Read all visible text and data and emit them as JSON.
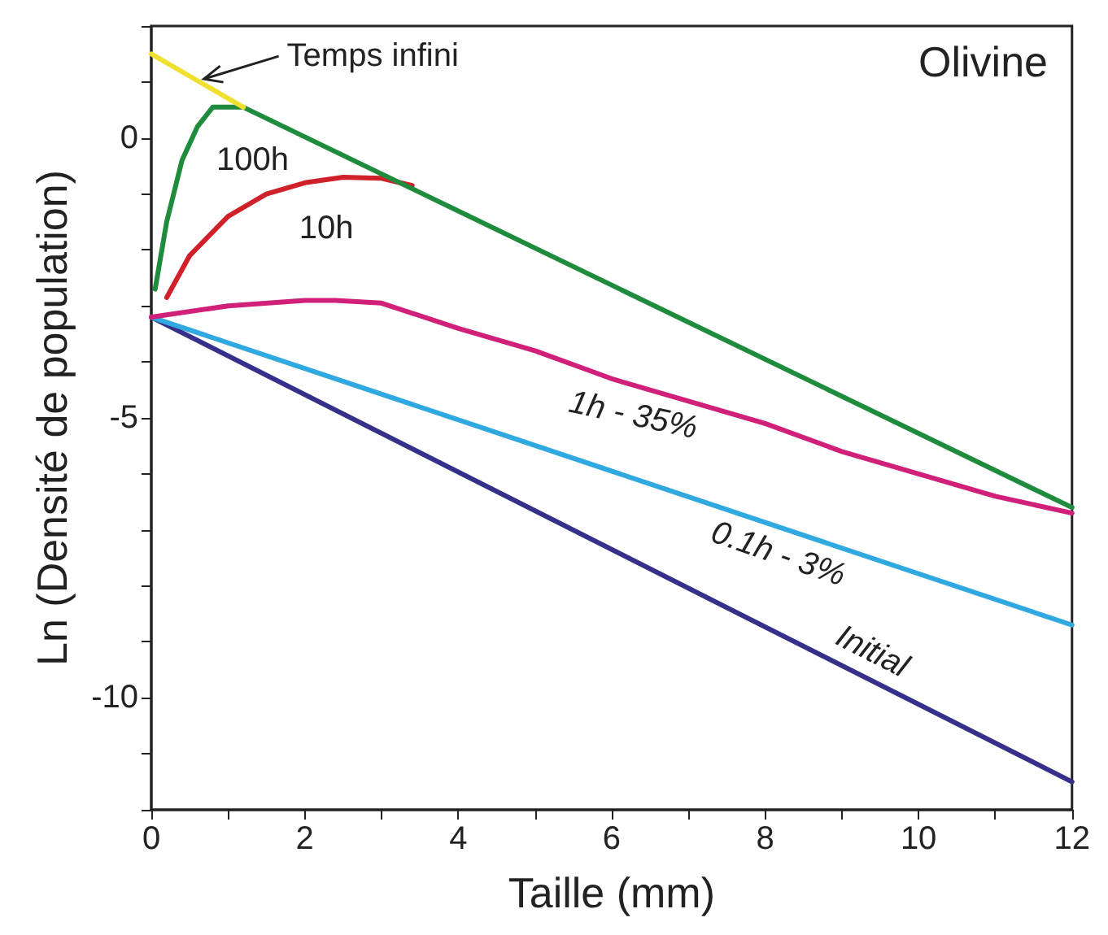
{
  "chart_data": {
    "type": "line",
    "title": "Olivine",
    "xlabel": "Taille (mm)",
    "ylabel": "Ln (Densité de population)",
    "xlim": [
      0,
      12
    ],
    "xticks": [
      0,
      {
        "value": 1,
        "label": null
      },
      2,
      {
        "value": 3,
        "label": null
      },
      4,
      {
        "value": 5,
        "label": null
      },
      6,
      {
        "value": 7,
        "label": null
      },
      8,
      {
        "value": 9,
        "label": null
      },
      10,
      {
        "value": 11,
        "label": null
      },
      12
    ],
    "ylim": [
      -12,
      2
    ],
    "yticks": [
      {
        "value": -12,
        "label": null
      },
      {
        "value": -11,
        "label": null
      },
      -10,
      {
        "value": -9,
        "label": null
      },
      {
        "value": -8,
        "label": null
      },
      {
        "value": -7,
        "label": null
      },
      {
        "value": -6,
        "label": null
      },
      -5,
      {
        "value": -4,
        "label": null
      },
      {
        "value": -3,
        "label": null
      },
      {
        "value": -2,
        "label": null
      },
      {
        "value": -1,
        "label": null
      },
      0,
      {
        "value": 1,
        "label": null
      },
      {
        "value": 2,
        "label": null
      }
    ],
    "grid": false,
    "legend": false,
    "marker": "none",
    "line_style": "solid",
    "series": [
      {
        "name": "Initial",
        "color": "#35308a",
        "x": [
          0,
          12
        ],
        "values": [
          -3.2,
          -11.5
        ]
      },
      {
        "name": "0.1h - 3%",
        "color": "#30a8e0",
        "x": [
          0,
          12
        ],
        "values": [
          -3.2,
          -8.7
        ]
      },
      {
        "name": "1h - 35%",
        "color": "#d0207a",
        "x": [
          0,
          1,
          2,
          2.4,
          3,
          4,
          5,
          6,
          7,
          8,
          9,
          10,
          11,
          12
        ],
        "values": [
          -3.2,
          -3.0,
          -2.9,
          -2.9,
          -2.95,
          -3.4,
          -3.8,
          -4.3,
          -4.7,
          -5.1,
          -5.6,
          -6.0,
          -6.4,
          -6.7
        ]
      },
      {
        "name": "10h",
        "color": "#d0202a",
        "x": [
          0.2,
          0.5,
          1,
          1.5,
          2,
          2.5,
          3,
          3.4
        ],
        "values": [
          -2.85,
          -2.1,
          -1.4,
          -1.0,
          -0.8,
          -0.7,
          -0.72,
          -0.85
        ]
      },
      {
        "name": "100h",
        "color": "#1e8c3c",
        "x": [
          0.05,
          0.2,
          0.4,
          0.6,
          0.8,
          1.2,
          12
        ],
        "values": [
          -2.7,
          -1.5,
          -0.4,
          0.2,
          0.55,
          0.55,
          -6.6
        ]
      },
      {
        "name": "Temps infini",
        "color": "#f0e030",
        "x": [
          0,
          1.2
        ],
        "values": [
          1.5,
          0.55
        ]
      }
    ]
  }
}
